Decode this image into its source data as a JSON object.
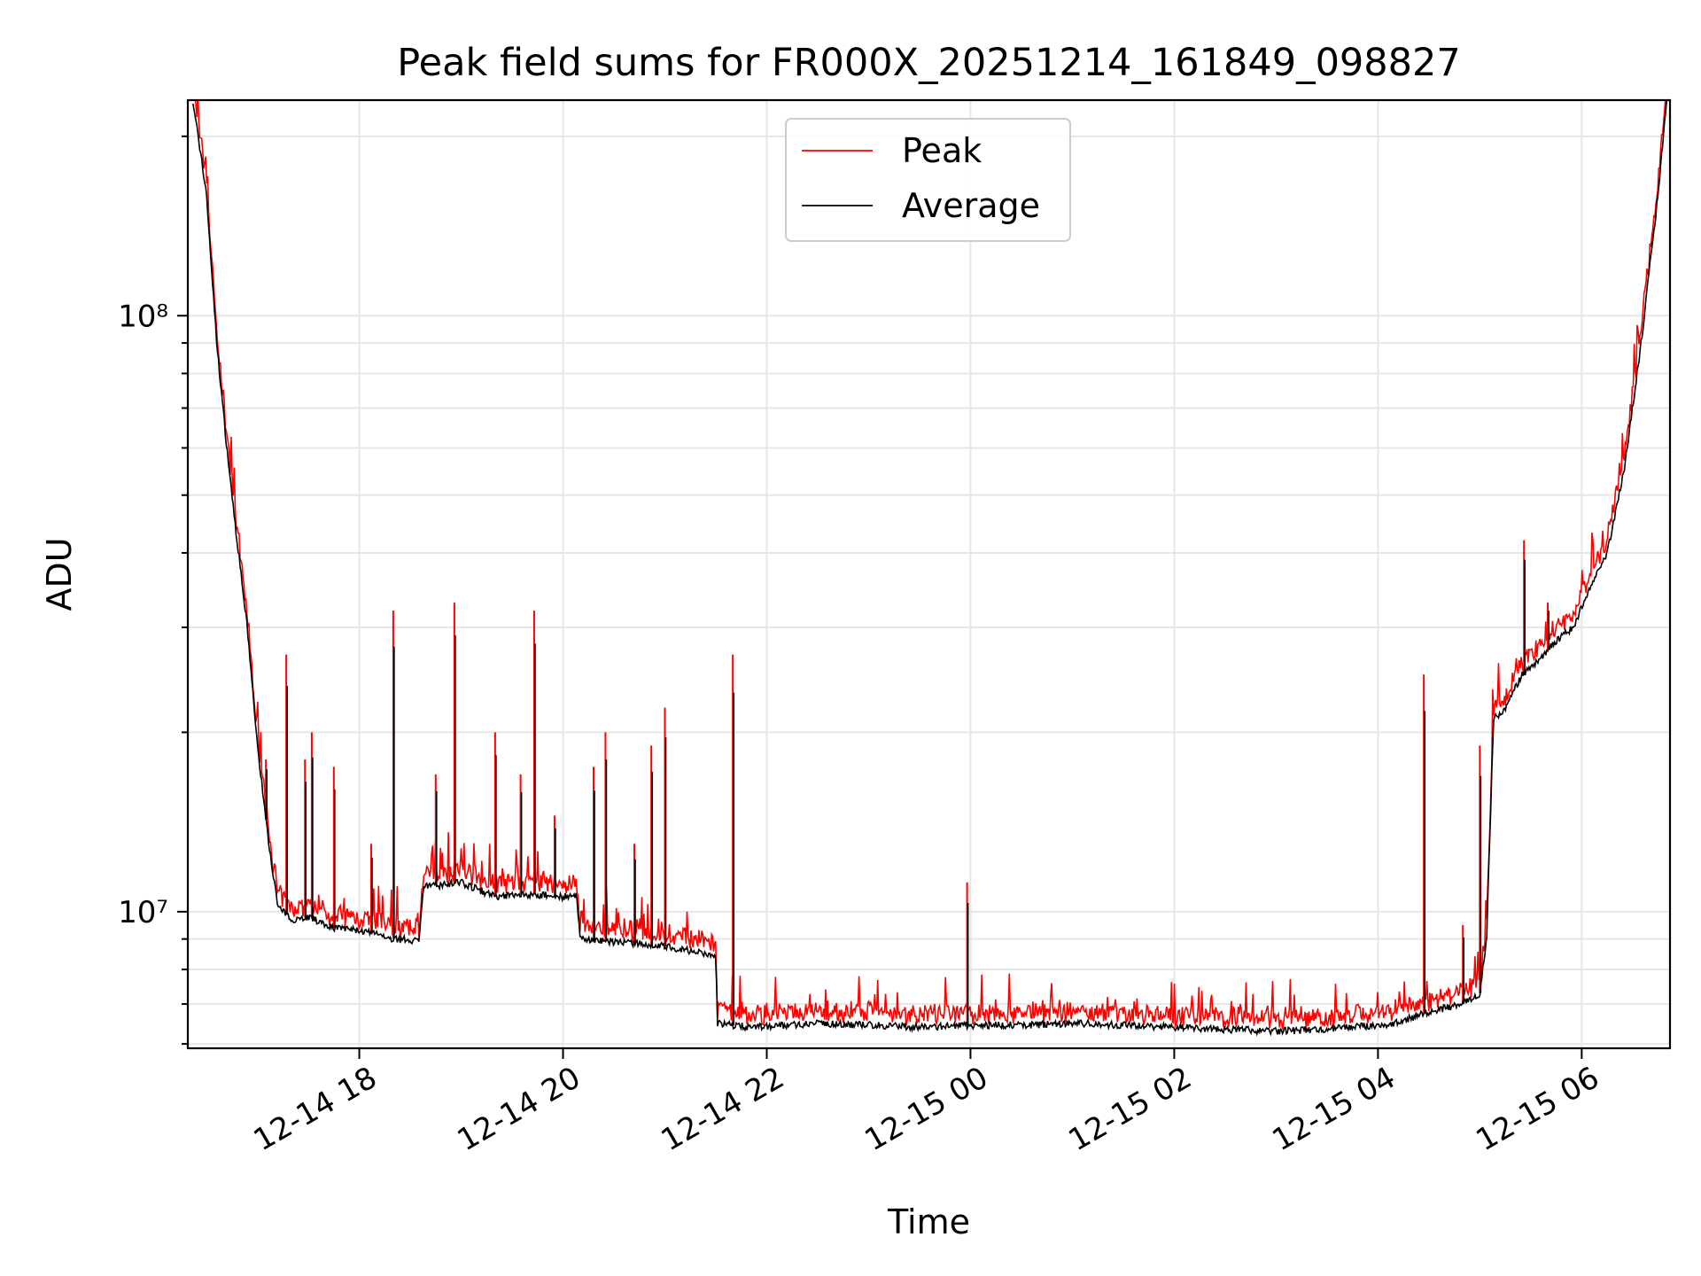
{
  "chart_data": {
    "type": "line",
    "title": "Peak field sums for FR000X_20251214_161849_098827",
    "xlabel": "Time",
    "ylabel": "ADU",
    "yscale": "log",
    "xlim": [
      "2025-12-14 16:19",
      "2025-12-15 06:52"
    ],
    "ylim": [
      5900000.0,
      230000000.0
    ],
    "grid": true,
    "legend": {
      "placement": "top-center",
      "entries": [
        "Peak",
        "Average"
      ]
    },
    "x_ticks": [
      "12-14 18",
      "12-14 20",
      "12-14 22",
      "12-15 00",
      "12-15 02",
      "12-15 04",
      "12-15 06"
    ],
    "x_tick_values": [
      "2025-12-14 18:00",
      "2025-12-14 20:00",
      "2025-12-14 22:00",
      "2025-12-15 00:00",
      "2025-12-15 02:00",
      "2025-12-15 04:00",
      "2025-12-15 06:00"
    ],
    "y_ticks": [
      "10⁷",
      "10⁸"
    ],
    "y_tick_values": [
      10000000.0,
      100000000.0
    ],
    "series": [
      {
        "name": "Average",
        "color": "#000000",
        "x": [
          "2025-12-14 16:22",
          "2025-12-14 16:30",
          "2025-12-14 16:36",
          "2025-12-14 16:42",
          "2025-12-14 16:48",
          "2025-12-14 16:54",
          "2025-12-14 17:00",
          "2025-12-14 17:06",
          "2025-12-14 17:12",
          "2025-12-14 17:20",
          "2025-12-14 17:30",
          "2025-12-14 17:45",
          "2025-12-14 18:00",
          "2025-12-14 18:20",
          "2025-12-14 18:35",
          "2025-12-14 18:38",
          "2025-12-14 19:00",
          "2025-12-14 19:20",
          "2025-12-14 19:40",
          "2025-12-14 20:00",
          "2025-12-14 20:08",
          "2025-12-14 20:10",
          "2025-12-14 20:30",
          "2025-12-14 21:00",
          "2025-12-14 21:15",
          "2025-12-14 21:30",
          "2025-12-14 21:31",
          "2025-12-14 21:50",
          "2025-12-14 22:30",
          "2025-12-14 23:00",
          "2025-12-14 23:30",
          "2025-12-15 00:00",
          "2025-12-15 00:30",
          "2025-12-15 01:00",
          "2025-12-15 01:30",
          "2025-12-15 02:00",
          "2025-12-15 02:30",
          "2025-12-15 03:00",
          "2025-12-15 03:30",
          "2025-12-15 04:00",
          "2025-12-15 04:10",
          "2025-12-15 04:30",
          "2025-12-15 04:50",
          "2025-12-15 05:00",
          "2025-12-15 05:04",
          "2025-12-15 05:08",
          "2025-12-15 05:15",
          "2025-12-15 05:25",
          "2025-12-15 05:35",
          "2025-12-15 05:45",
          "2025-12-15 05:55",
          "2025-12-15 06:05",
          "2025-12-15 06:15",
          "2025-12-15 06:25",
          "2025-12-15 06:35",
          "2025-12-15 06:45",
          "2025-12-15 06:50"
        ],
        "y": [
          230000000.0,
          160000000.0,
          90000000.0,
          60000000.0,
          42000000.0,
          30000000.0,
          19000000.0,
          13500000.0,
          10200000.0,
          9700000.0,
          9800000.0,
          9400000.0,
          9300000.0,
          9000000.0,
          8950000.0,
          11000000.0,
          11200000.0,
          10600000.0,
          10700000.0,
          10600000.0,
          10600000.0,
          9000000.0,
          8900000.0,
          8750000.0,
          8600000.0,
          8400000.0,
          6500000.0,
          6400000.0,
          6500000.0,
          6450000.0,
          6400000.0,
          6450000.0,
          6450000.0,
          6500000.0,
          6450000.0,
          6400000.0,
          6350000.0,
          6300000.0,
          6350000.0,
          6450000.0,
          6500000.0,
          6800000.0,
          7000000.0,
          7300000.0,
          9000000.0,
          21000000.0,
          22000000.0,
          25000000.0,
          26500000.0,
          28500000.0,
          30000000.0,
          35000000.0,
          40000000.0,
          55000000.0,
          90000000.0,
          160000000.0,
          230000000.0
        ]
      },
      {
        "name": "Peak",
        "color": "#ff0000",
        "spikes": [
          {
            "x": "2025-12-14 17:05",
            "y": 18000000.0
          },
          {
            "x": "2025-12-14 17:17",
            "y": 27000000.0
          },
          {
            "x": "2025-12-14 17:28",
            "y": 18000000.0
          },
          {
            "x": "2025-12-14 17:32",
            "y": 20000000.0
          },
          {
            "x": "2025-12-14 17:45",
            "y": 17500000.0
          },
          {
            "x": "2025-12-14 18:07",
            "y": 13000000.0
          },
          {
            "x": "2025-12-14 18:20",
            "y": 32000000.0
          },
          {
            "x": "2025-12-14 18:45",
            "y": 17000000.0
          },
          {
            "x": "2025-12-14 18:56",
            "y": 33000000.0
          },
          {
            "x": "2025-12-14 19:20",
            "y": 20000000.0
          },
          {
            "x": "2025-12-14 19:35",
            "y": 17000000.0
          },
          {
            "x": "2025-12-14 19:43",
            "y": 32000000.0
          },
          {
            "x": "2025-12-14 19:55",
            "y": 14500000.0
          },
          {
            "x": "2025-12-14 20:18",
            "y": 17500000.0
          },
          {
            "x": "2025-12-14 20:25",
            "y": 20000000.0
          },
          {
            "x": "2025-12-14 20:42",
            "y": 13000000.0
          },
          {
            "x": "2025-12-14 20:52",
            "y": 19000000.0
          },
          {
            "x": "2025-12-14 21:00",
            "y": 22000000.0
          },
          {
            "x": "2025-12-14 21:40",
            "y": 27000000.0
          },
          {
            "x": "2025-12-14 23:58",
            "y": 11200000.0
          },
          {
            "x": "2025-12-15 04:27",
            "y": 25000000.0
          },
          {
            "x": "2025-12-15 04:50",
            "y": 9500000.0
          },
          {
            "x": "2025-12-15 05:00",
            "y": 19000000.0
          },
          {
            "x": "2025-12-15 05:26",
            "y": 42000000.0
          },
          {
            "x": "2025-12-15 05:40",
            "y": 33000000.0
          }
        ]
      }
    ]
  }
}
